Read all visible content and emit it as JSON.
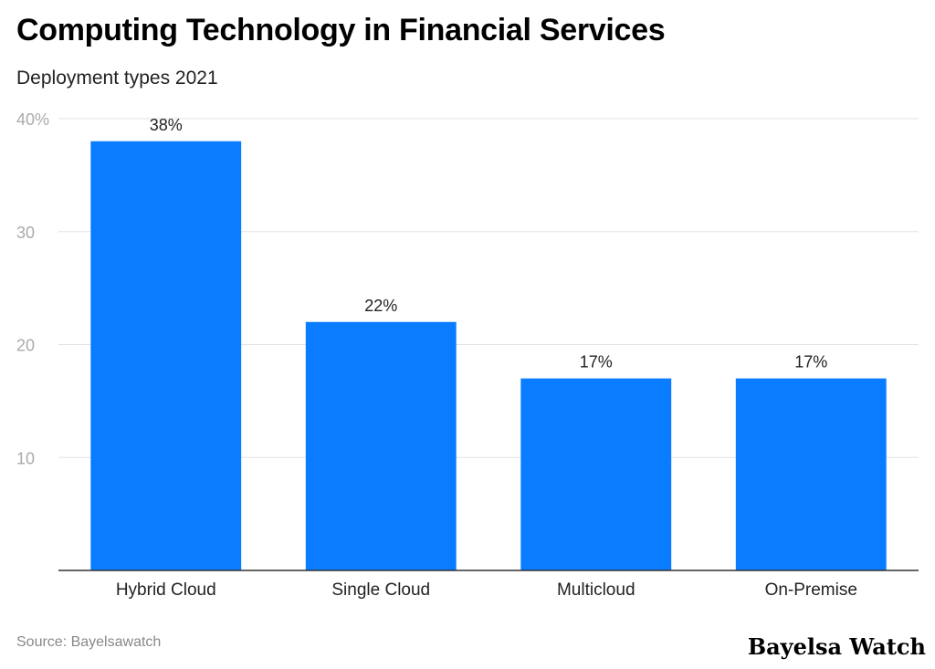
{
  "header": {
    "title": "Computing Technology in Financial Services",
    "subtitle": "Deployment types 2021"
  },
  "footer": {
    "source": "Source: Bayelsawatch",
    "brand": "Bayelsa Watch"
  },
  "colors": {
    "bar": "#0a7cff",
    "grid": "#e3e3e3",
    "axis": "#333333",
    "tick_text": "#aaaaaa"
  },
  "chart_data": {
    "type": "bar",
    "title": "Computing Technology in Financial Services",
    "subtitle": "Deployment types 2021",
    "categories": [
      "Hybrid Cloud",
      "Single Cloud",
      "Multicloud",
      "On-Premise"
    ],
    "values": [
      38,
      22,
      17,
      17
    ],
    "value_labels": [
      "38%",
      "22%",
      "17%",
      "17%"
    ],
    "ylim": [
      0,
      40
    ],
    "yticks": [
      {
        "value": 10,
        "label": "10"
      },
      {
        "value": 20,
        "label": "20"
      },
      {
        "value": 30,
        "label": "30"
      },
      {
        "value": 40,
        "label": "40%"
      }
    ],
    "xlabel": "",
    "ylabel": "",
    "grid": true
  }
}
